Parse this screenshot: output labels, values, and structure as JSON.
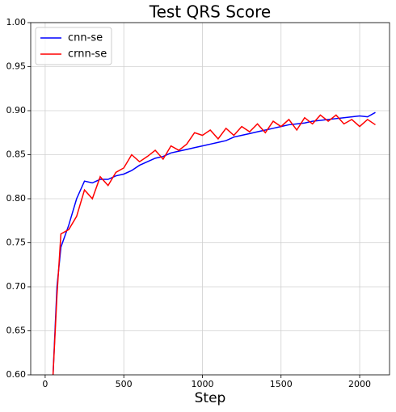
{
  "chart_data": {
    "type": "line",
    "title": "Test QRS Score",
    "x_label": "Step",
    "x": [
      50,
      75,
      100,
      150,
      200,
      250,
      300,
      350,
      400,
      450,
      500,
      550,
      600,
      650,
      700,
      750,
      800,
      850,
      900,
      950,
      1000,
      1050,
      1100,
      1150,
      1200,
      1250,
      1300,
      1350,
      1400,
      1450,
      1500,
      1550,
      1600,
      1650,
      1700,
      1750,
      1800,
      1850,
      1900,
      1950,
      2000,
      2050,
      2100
    ],
    "series": [
      {
        "name": "cnn-se",
        "color": "#0000ff",
        "values": [
          0.6,
          0.7,
          0.745,
          0.77,
          0.8,
          0.82,
          0.818,
          0.822,
          0.822,
          0.826,
          0.828,
          0.832,
          0.838,
          0.842,
          0.846,
          0.848,
          0.852,
          0.854,
          0.856,
          0.858,
          0.86,
          0.862,
          0.864,
          0.866,
          0.87,
          0.872,
          0.874,
          0.876,
          0.878,
          0.88,
          0.882,
          0.884,
          0.885,
          0.886,
          0.888,
          0.889,
          0.89,
          0.891,
          0.892,
          0.893,
          0.894,
          0.893,
          0.898
        ]
      },
      {
        "name": "crnn-se",
        "color": "#ff0000",
        "values": [
          0.6,
          0.69,
          0.76,
          0.765,
          0.78,
          0.81,
          0.8,
          0.825,
          0.815,
          0.83,
          0.835,
          0.85,
          0.842,
          0.848,
          0.855,
          0.845,
          0.86,
          0.855,
          0.862,
          0.875,
          0.872,
          0.878,
          0.868,
          0.88,
          0.872,
          0.882,
          0.876,
          0.885,
          0.875,
          0.888,
          0.882,
          0.89,
          0.878,
          0.892,
          0.885,
          0.895,
          0.888,
          0.895,
          0.885,
          0.89,
          0.882,
          0.89,
          0.884
        ]
      }
    ],
    "xlim": [
      -92,
      2190
    ],
    "xticks": [
      0,
      500,
      1000,
      1500,
      2000
    ],
    "ylim": [
      0.6,
      1.0
    ],
    "yticks": [
      {
        "value": 0.6,
        "label": "0.60"
      },
      {
        "value": 0.65,
        "label": "0.65"
      },
      {
        "value": 0.7,
        "label": "0.70"
      },
      {
        "value": 0.75,
        "label": "0.75"
      },
      {
        "value": 0.8,
        "label": "0.80"
      },
      {
        "value": 0.85,
        "label": "0.85"
      },
      {
        "value": 0.9,
        "label": "0.90"
      },
      {
        "value": 0.95,
        "label": "0.95"
      },
      {
        "value": 1.0,
        "label": "1.00"
      }
    ],
    "grid": true,
    "legend": "upper-left"
  }
}
